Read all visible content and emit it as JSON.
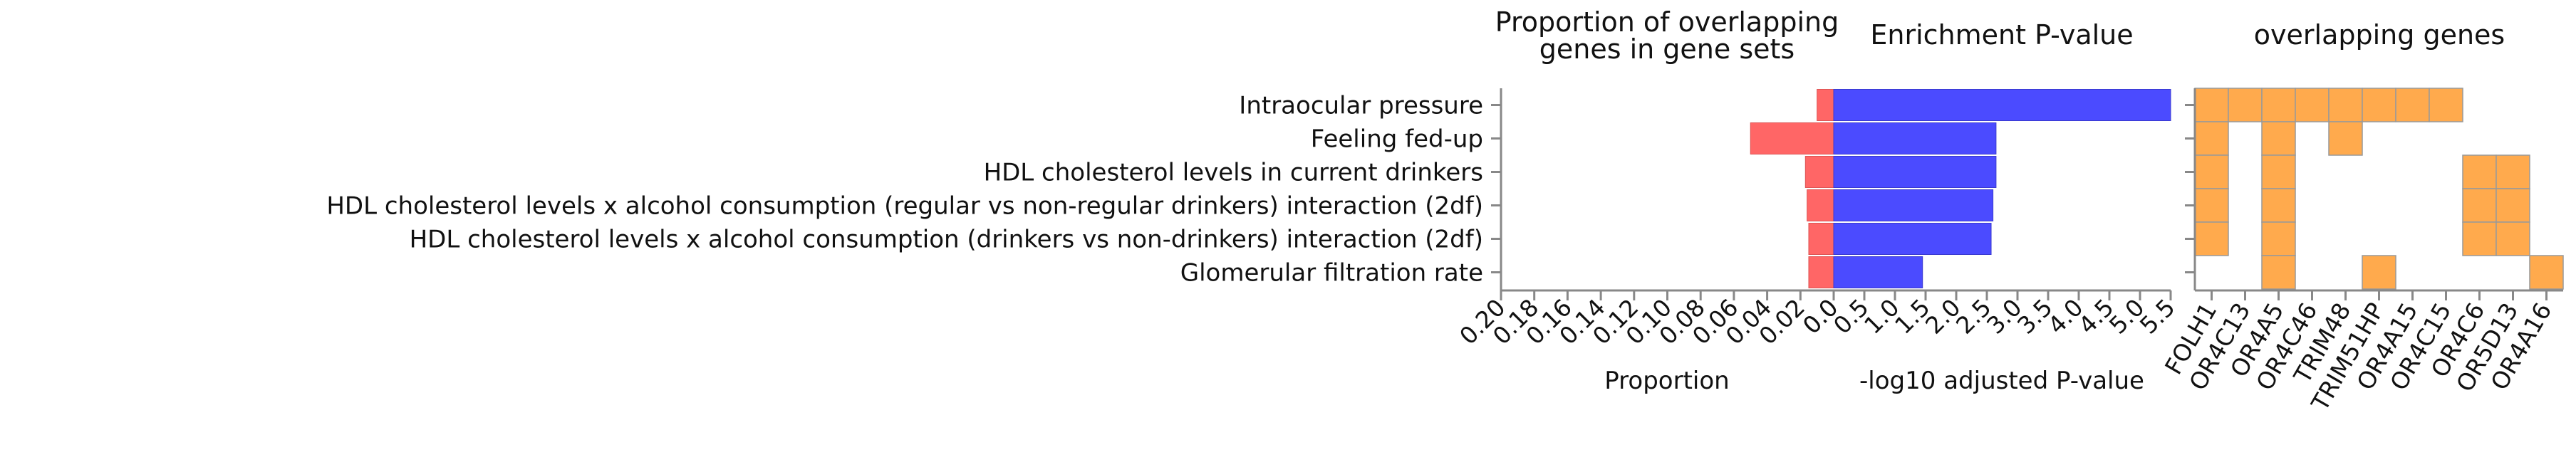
{
  "chart_data": [
    {
      "type": "bar",
      "orientation": "horizontal",
      "title": "Proportion of overlapping\ngenes in gene sets",
      "xlabel": "Proportion",
      "x_reversed": true,
      "xlim": [
        0.2,
        0
      ],
      "xticks": [
        "0.20",
        "0.18",
        "0.16",
        "0.14",
        "0.12",
        "0.10",
        "0.08",
        "0.06",
        "0.04",
        "0.02",
        "0.0"
      ],
      "categories": [
        "Intraocular pressure",
        "Feeling fed-up",
        "HDL cholesterol levels in current drinkers",
        "HDL cholesterol levels x alcohol consumption (regular vs non-regular drinkers) interaction (2df)",
        "HDL cholesterol levels x alcohol consumption (drinkers vs non-drinkers) interaction (2df)",
        "Glomerular filtration rate"
      ],
      "values": [
        0.01,
        0.05,
        0.017,
        0.016,
        0.015,
        0.015
      ],
      "color": "#ff6666"
    },
    {
      "type": "bar",
      "orientation": "horizontal",
      "title": "Enrichment P-value",
      "xlabel": "-log10 adjusted P-value",
      "xlim": [
        0,
        5.5
      ],
      "xticks": [
        "0.0",
        "0.5",
        "1.0",
        "1.5",
        "2.0",
        "2.5",
        "3.0",
        "3.5",
        "4.0",
        "4.5",
        "5.0",
        "5.5"
      ],
      "values": [
        5.5,
        2.65,
        2.65,
        2.6,
        2.57,
        1.45
      ],
      "color": "#4b4bff"
    },
    {
      "type": "heatmap",
      "title": "overlapping genes",
      "genes": [
        "FOLH1",
        "OR4C13",
        "OR4A5",
        "OR4C46",
        "TRIM48",
        "TRIM51HP",
        "OR4A15",
        "OR4C15",
        "OR4C6",
        "OR5D13",
        "OR4A16"
      ],
      "matrix": [
        [
          1,
          1,
          1,
          1,
          1,
          1,
          1,
          1,
          0,
          0,
          0
        ],
        [
          1,
          0,
          1,
          0,
          1,
          0,
          0,
          0,
          0,
          0,
          0
        ],
        [
          1,
          0,
          1,
          0,
          0,
          0,
          0,
          0,
          1,
          1,
          0
        ],
        [
          1,
          0,
          1,
          0,
          0,
          0,
          0,
          0,
          1,
          1,
          0
        ],
        [
          1,
          0,
          1,
          0,
          0,
          0,
          0,
          0,
          1,
          1,
          0
        ],
        [
          0,
          0,
          1,
          0,
          0,
          1,
          0,
          0,
          0,
          0,
          1
        ]
      ],
      "color": "#ffaa4d"
    }
  ]
}
